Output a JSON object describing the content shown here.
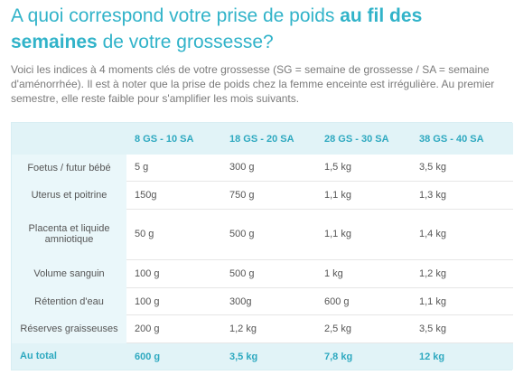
{
  "title": {
    "part1": "A quoi correspond votre prise de poids ",
    "highlight": "au fil des semaines",
    "part2": " de votre grossesse?"
  },
  "intro": "Voici les indices à 4 moments clés de votre grossesse (SG = semaine de grossesse / SA = semaine d'aménorrhée). Il est à noter que la prise de poids chez la femme enceinte est irrégulière. Au premier semestre, elle reste faible pour s'amplifier les mois suivants.",
  "table": {
    "headers": [
      "",
      "8 GS - 10 SA",
      "18 GS - 20 SA",
      "28 GS - 30 SA",
      "38 GS - 40 SA"
    ],
    "rows": [
      {
        "label": "Foetus / futur bébé",
        "values": [
          "5 g",
          "300 g",
          "1,5 kg",
          "3,5 kg"
        ]
      },
      {
        "label": "Uterus et poitrine",
        "values": [
          "150g",
          "750 g",
          "1,1 kg",
          "1,3 kg"
        ]
      },
      {
        "label": "Placenta et liquide amniotique",
        "values": [
          "50 g",
          "500 g",
          "1,1 kg",
          "1,4 kg"
        ]
      },
      {
        "label": "Volume sanguin",
        "values": [
          "100 g",
          "500 g",
          "1 kg",
          "1,2 kg"
        ]
      },
      {
        "label": "Rétention d'eau",
        "values": [
          "100 g",
          "300g",
          "600 g",
          "1,1 kg"
        ]
      },
      {
        "label": "Réserves graisseuses",
        "values": [
          "200 g",
          "1,2 kg",
          "2,5 kg",
          "3,5 kg"
        ]
      }
    ],
    "total": {
      "label": "Au total",
      "values": [
        "600 g",
        "3,5 kg",
        "7,8 kg",
        "12 kg"
      ]
    }
  },
  "colors": {
    "accent": "#31b3c9",
    "table_bg": "#eaf7fa",
    "header_bg": "#e1f3f7"
  }
}
